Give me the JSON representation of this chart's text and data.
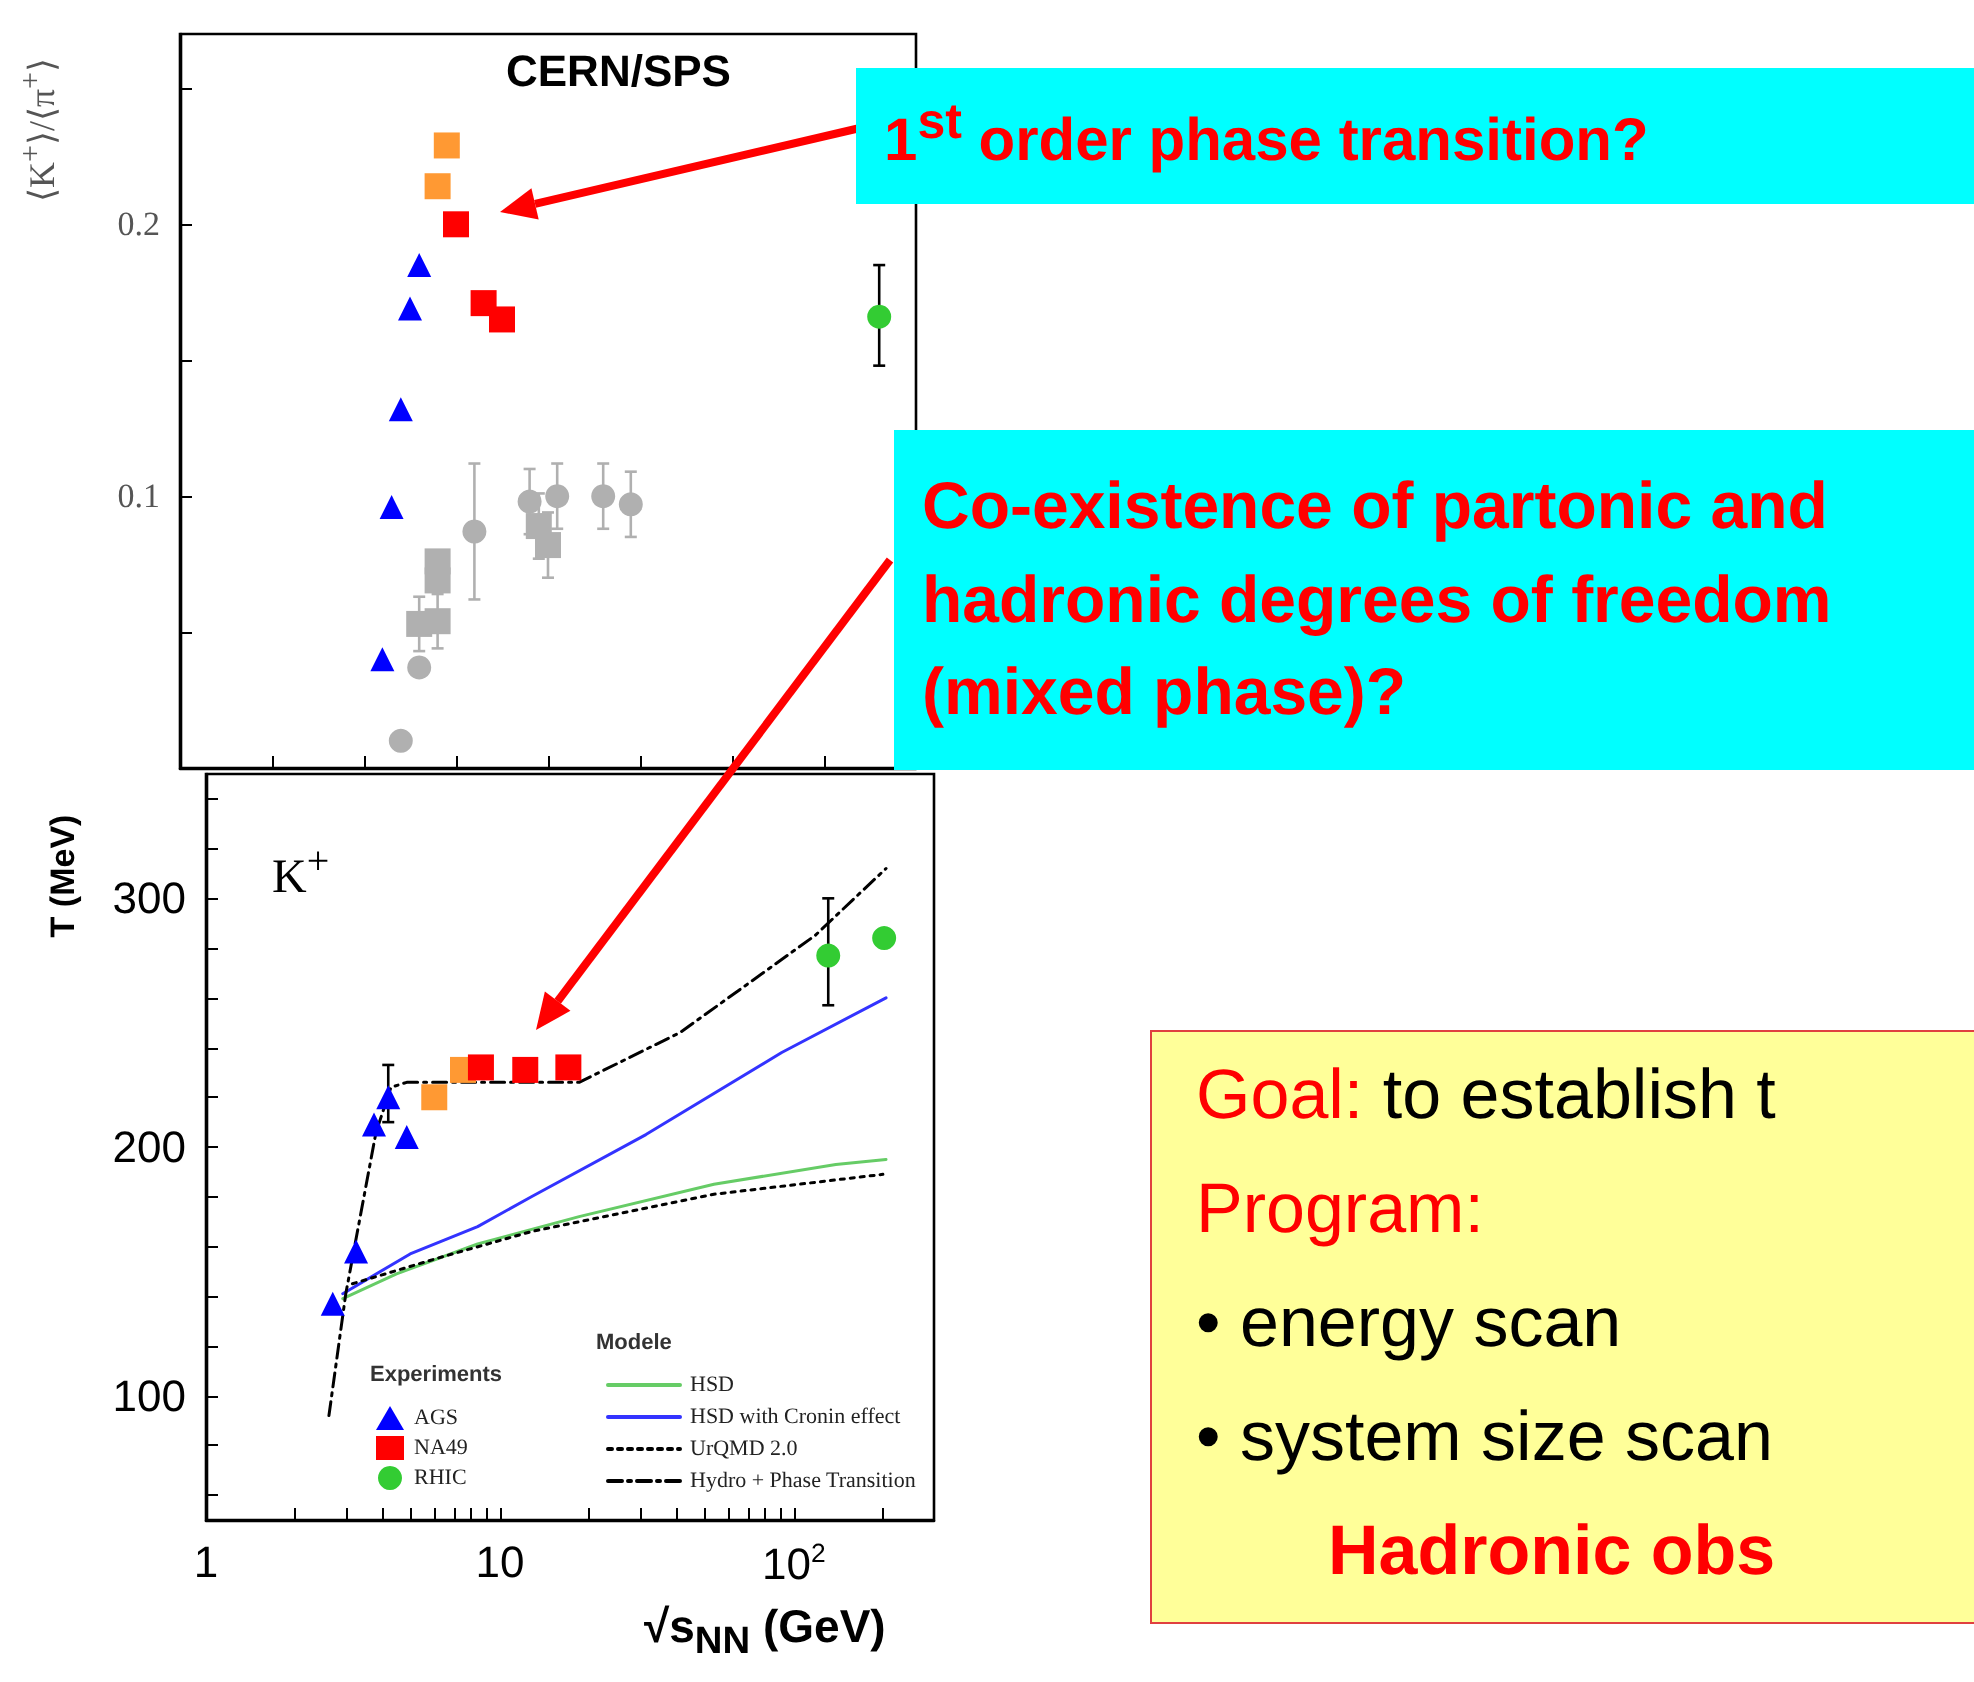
{
  "chart_data": [
    {
      "type": "scatter",
      "ylabel": "⟨K$^{+}$⟩/⟨π$^{+}$⟩",
      "categories": [
        null,
        null,
        null,
        null,
        null,
        null,
        null,
        null,
        null,
        null,
        null,
        null,
        null,
        null,
        null,
        null,
        null,
        null,
        null,
        null,
        null,
        null,
        null,
        null,
        null,
        null,
        null,
        null,
        null,
        null,
        null,
        null,
        null,
        null,
        null,
        null,
        null,
        null,
        null,
        null,
        null,
        null,
        null,
        null,
        null,
        null,
        null,
        null,
        null,
        null,
        null,
        null,
        null,
        null,
        null,
        null,
        null,
        null,
        null,
        null,
        null,
        null,
        null,
        null,
        null,
        null,
        null,
        null,
        null,
        null,
        null,
        null,
        null,
        null,
        null,
        null,
        null,
        null,
        null,
        null,
        null
      ],
      "ylim": [
        0,
        0.27
      ],
      "yticks": [
        {
          "value": 0.05,
          "label": null
        },
        0.1,
        {
          "value": 0.15,
          "label": null
        },
        0.2,
        {
          "value": 0.25,
          "label": null
        }
      ],
      "tick_labels": "y",
      "grid": false,
      "series": [
        {
          "color": "#b0b0b0",
          "marker": "circle",
          "values": [
            null,
            null,
            null,
            null,
            null,
            null,
            null,
            null,
            null,
            null,
            null,
            null,
            null,
            null,
            null,
            null,
            null,
            null,
            null,
            null,
            null,
            null,
            null,
            null,
            0.01,
            null,
            0.037,
            null,
            null,
            null,
            null,
            null,
            0.087,
            null,
            null,
            null,
            null,
            null,
            0.098,
            null,
            null,
            0.1,
            null,
            null,
            null,
            null,
            0.1,
            null,
            null,
            0.097,
            null,
            null,
            null,
            null,
            null,
            null,
            null,
            null,
            null,
            null,
            null,
            null,
            null,
            null,
            null,
            null,
            null,
            null,
            null,
            null,
            null,
            null,
            null,
            null,
            null,
            null,
            null,
            null,
            null,
            null,
            null
          ],
          "errors": [
            null,
            null,
            null,
            null,
            null,
            null,
            null,
            null,
            null,
            null,
            null,
            null,
            null,
            null,
            null,
            null,
            null,
            null,
            null,
            null,
            null,
            null,
            null,
            null,
            null,
            null,
            null,
            null,
            null,
            null,
            null,
            null,
            0.025,
            null,
            null,
            null,
            null,
            null,
            0.012,
            null,
            null,
            0.012,
            null,
            null,
            null,
            null,
            0.012,
            null,
            null,
            0.012,
            null,
            null,
            null,
            null,
            null,
            null,
            null,
            null,
            null,
            null,
            null,
            null,
            null,
            null,
            null,
            null,
            null,
            null,
            null,
            null,
            null,
            null,
            null,
            null,
            null,
            null,
            null,
            null,
            null,
            null,
            null
          ]
        },
        {
          "color": "#b0b0b0",
          "marker": "square",
          "values": [
            null,
            null,
            null,
            null,
            null,
            null,
            null,
            null,
            null,
            null,
            null,
            null,
            null,
            null,
            null,
            null,
            null,
            null,
            null,
            null,
            null,
            null,
            null,
            null,
            null,
            null,
            0.053,
            null,
            0.054,
            null,
            null,
            null,
            null,
            null,
            null,
            null,
            null,
            null,
            null,
            0.089,
            0.082,
            null,
            null,
            null,
            null,
            null,
            null,
            null,
            null,
            null,
            null,
            null,
            null,
            null,
            null,
            null,
            null,
            null,
            null,
            null,
            null,
            null,
            null,
            null,
            null,
            null,
            null,
            null,
            null,
            null,
            null,
            null,
            null,
            null,
            null,
            null,
            null,
            null,
            null,
            null,
            null
          ],
          "errors": [
            null,
            null,
            null,
            null,
            null,
            null,
            null,
            null,
            null,
            null,
            null,
            null,
            null,
            null,
            null,
            null,
            null,
            null,
            null,
            null,
            null,
            null,
            null,
            null,
            null,
            null,
            0.01,
            null,
            0.01,
            null,
            null,
            null,
            null,
            null,
            null,
            null,
            null,
            null,
            null,
            0.012,
            0.012,
            null,
            null,
            null,
            null,
            null,
            null,
            null,
            null,
            null,
            null,
            null,
            null,
            null,
            null,
            null,
            null,
            null,
            null,
            null,
            null,
            null,
            null,
            null,
            null,
            null,
            null,
            null,
            null,
            null,
            null,
            null,
            null,
            null,
            null,
            null,
            null,
            null,
            null,
            null,
            null
          ]
        },
        {
          "color": "#b0b0b0",
          "marker": "square",
          "values": [
            null,
            null,
            null,
            null,
            null,
            null,
            null,
            null,
            null,
            null,
            null,
            null,
            null,
            null,
            null,
            null,
            null,
            null,
            null,
            null,
            null,
            null,
            null,
            null,
            null,
            null,
            null,
            null,
            0.069,
            null,
            null,
            null,
            null,
            null,
            null,
            null,
            null,
            null,
            null,
            null,
            null,
            null,
            null,
            null,
            null,
            null,
            null,
            null,
            null,
            null,
            null,
            null,
            null,
            null,
            null,
            null,
            null,
            null,
            null,
            null,
            null,
            null,
            null,
            null,
            null,
            null,
            null,
            null,
            null,
            null,
            null,
            null,
            null,
            null,
            null,
            null,
            null,
            null,
            null,
            null,
            null
          ]
        },
        {
          "color": "#b0b0b0",
          "marker": "square",
          "values": [
            null,
            null,
            null,
            null,
            null,
            null,
            null,
            null,
            null,
            null,
            null,
            null,
            null,
            null,
            null,
            null,
            null,
            null,
            null,
            null,
            null,
            null,
            null,
            null,
            null,
            null,
            null,
            null,
            0.076,
            null,
            null,
            null,
            null,
            null,
            null,
            null,
            null,
            null,
            null,
            null,
            null,
            null,
            null,
            null,
            null,
            null,
            null,
            null,
            null,
            null,
            null,
            null,
            null,
            null,
            null,
            null,
            null,
            null,
            null,
            null,
            null,
            null,
            null,
            null,
            null,
            null,
            null,
            null,
            null,
            null,
            null,
            null,
            null,
            null,
            null,
            null,
            null,
            null,
            null,
            null,
            null
          ]
        },
        {
          "color": "#0000ff",
          "marker": "triangle",
          "values": [
            null,
            null,
            null,
            null,
            null,
            null,
            null,
            null,
            null,
            null,
            null,
            null,
            null,
            null,
            null,
            null,
            null,
            null,
            null,
            null,
            null,
            null,
            0.04,
            0.096,
            0.132,
            0.169,
            0.185,
            null,
            null,
            null,
            null,
            null,
            null,
            null,
            null,
            null,
            null,
            null,
            null,
            null,
            null,
            null,
            null,
            null,
            null,
            null,
            null,
            null,
            null,
            null,
            null,
            null,
            null,
            null,
            null,
            null,
            null,
            null,
            null,
            null,
            null,
            null,
            null,
            null,
            null,
            null,
            null,
            null,
            null,
            null,
            null,
            null,
            null,
            null,
            null,
            null,
            null,
            null,
            null,
            null,
            null
          ]
        },
        {
          "color": "#ff9933",
          "marker": "square",
          "values": [
            null,
            null,
            null,
            null,
            null,
            null,
            null,
            null,
            null,
            null,
            null,
            null,
            null,
            null,
            null,
            null,
            null,
            null,
            null,
            null,
            null,
            null,
            null,
            null,
            null,
            null,
            null,
            null,
            0.214,
            0.229,
            null,
            null,
            null,
            null,
            null,
            null,
            null,
            null,
            null,
            null,
            null,
            null,
            null,
            null,
            null,
            null,
            null,
            null,
            null,
            null,
            null,
            null,
            null,
            null,
            null,
            null,
            null,
            null,
            null,
            null,
            null,
            null,
            null,
            null,
            null,
            null,
            null,
            null,
            null,
            null,
            null,
            null,
            null,
            null,
            null,
            null,
            null,
            null,
            null,
            null,
            null
          ]
        },
        {
          "color": "#ff0000",
          "marker": "square",
          "values": [
            null,
            null,
            null,
            null,
            null,
            null,
            null,
            null,
            null,
            null,
            null,
            null,
            null,
            null,
            null,
            null,
            null,
            null,
            null,
            null,
            null,
            null,
            null,
            null,
            null,
            null,
            null,
            null,
            null,
            null,
            0.2,
            null,
            null,
            0.171,
            null,
            0.165,
            null,
            null,
            null,
            null,
            null,
            null,
            null,
            null,
            null,
            null,
            null,
            null,
            null,
            null,
            null,
            null,
            null,
            null,
            null,
            null,
            null,
            null,
            null,
            null,
            null,
            null,
            null,
            null,
            null,
            null,
            null,
            null,
            null,
            null,
            null,
            null,
            null,
            null,
            null,
            null,
            null,
            null,
            null,
            null,
            null
          ]
        },
        {
          "color": "#33cc33",
          "marker": "circle",
          "values": [
            null,
            null,
            null,
            null,
            null,
            null,
            null,
            null,
            null,
            null,
            null,
            null,
            null,
            null,
            null,
            null,
            null,
            null,
            null,
            null,
            null,
            null,
            null,
            null,
            null,
            null,
            null,
            null,
            null,
            null,
            null,
            null,
            null,
            null,
            null,
            null,
            null,
            null,
            null,
            null,
            null,
            null,
            null,
            null,
            null,
            null,
            null,
            null,
            null,
            null,
            null,
            null,
            null,
            null,
            null,
            null,
            null,
            null,
            null,
            null,
            null,
            null,
            null,
            null,
            null,
            null,
            null,
            null,
            null,
            null,
            null,
            null,
            null,
            null,
            null,
            null,
            0.166,
            null,
            null,
            null,
            null
          ],
          "errors": [
            null,
            null,
            null,
            null,
            null,
            null,
            null,
            null,
            null,
            null,
            null,
            null,
            null,
            null,
            null,
            null,
            null,
            null,
            null,
            null,
            null,
            null,
            null,
            null,
            null,
            null,
            null,
            null,
            null,
            null,
            null,
            null,
            null,
            null,
            null,
            null,
            null,
            null,
            null,
            null,
            null,
            null,
            null,
            null,
            null,
            null,
            null,
            null,
            null,
            null,
            null,
            null,
            null,
            null,
            null,
            null,
            null,
            null,
            null,
            null,
            null,
            null,
            null,
            null,
            null,
            null,
            null,
            null,
            null,
            null,
            null,
            null,
            null,
            null,
            null,
            null,
            [
              0.148,
              0.185
            ],
            null,
            null,
            null,
            null
          ]
        }
      ],
      "annotations": [
        "CERN/SPS",
        "1$^{st}$ order phase transition?"
      ]
    },
    {
      "type": "scatter",
      "xlabel": "√s$_{NN}$ (GeV)",
      "ylabel": "T (MeV)",
      "log": "x",
      "xlim": [
        1,
        300
      ],
      "xticks": [
        1,
        {
          "value": 2,
          "label": null
        },
        {
          "value": 3,
          "label": null
        },
        {
          "value": 4,
          "label": null
        },
        {
          "value": 5,
          "label": null
        },
        {
          "value": 6,
          "label": null
        },
        {
          "value": 7,
          "label": null
        },
        {
          "value": 8,
          "label": null
        },
        {
          "value": 9,
          "label": null
        },
        10,
        {
          "value": 20,
          "label": null
        },
        {
          "value": 30,
          "label": null
        },
        {
          "value": 40,
          "label": null
        },
        {
          "value": 50,
          "label": null
        },
        {
          "value": 60,
          "label": null
        },
        {
          "value": 70,
          "label": null
        },
        {
          "value": 80,
          "label": null
        },
        {
          "value": 90,
          "label": null
        },
        {
          "value": 100,
          "label": "10$^{2}$"
        },
        {
          "value": 200,
          "label": null
        }
      ],
      "ylim": [
        50,
        350
      ],
      "yticks": [
        {
          "value": 60,
          "label": null
        },
        {
          "value": 80,
          "label": null
        },
        100,
        {
          "value": 120,
          "label": null
        },
        {
          "value": 140,
          "label": null
        },
        {
          "value": 160,
          "label": null
        },
        {
          "value": 180,
          "label": null
        },
        200,
        {
          "value": 220,
          "label": null
        },
        {
          "value": 240,
          "label": null
        },
        {
          "value": 260,
          "label": null
        },
        {
          "value": 280,
          "label": null
        },
        300,
        {
          "value": 320,
          "label": null
        },
        {
          "value": 340,
          "label": null
        }
      ],
      "grid": false,
      "legend": "bottom right",
      "legend_title": [
        "Experiments",
        "Modele"
      ],
      "series": [
        {
          "name": "AGS",
          "color": "#0000ff",
          "marker": "triangle",
          "x": [
            2.7,
            3.24,
            3.73,
            4.17,
            4.82
          ],
          "values": [
            137,
            158,
            209,
            220,
            204
          ],
          "errors": [
            null,
            null,
            null,
            [
              210,
              233
            ],
            null
          ]
        },
        {
          "color": "#ff9933",
          "marker": "square",
          "x": [
            5.98,
            7.49
          ],
          "values": [
            220,
            231
          ]
        },
        {
          "name": "NA49",
          "color": "#ff0000",
          "marker": "square",
          "x": [
            8.62,
            12.2,
            17.1
          ],
          "values": [
            232,
            231,
            232
          ]
        },
        {
          "name": "RHIC",
          "color": "#33cc33",
          "marker": "circle",
          "x": [
            131,
            203
          ],
          "values": [
            277,
            284
          ],
          "errors": [
            [
              257,
              300
            ],
            null
          ]
        },
        {
          "name": "HSD",
          "type": "line",
          "color": "#66cc66",
          "line_style": "solid",
          "x": [
            2.92,
            4.45,
            8.4,
            18.6,
            53.5,
            139,
            206
          ],
          "values": [
            139,
            149,
            161,
            172,
            185,
            193,
            195
          ]
        },
        {
          "name": "HSD with Cronin effect",
          "type": "line",
          "color": "#3333ff",
          "line_style": "solid",
          "x": [
            2.92,
            4.95,
            8.4,
            12.8,
            31.4,
            91,
            206
          ],
          "values": [
            141,
            157,
            168,
            180,
            205,
            238,
            260
          ]
        },
        {
          "name": "UrQMD 2.0",
          "type": "line",
          "color": "#000000",
          "line_style": "dotted",
          "x": [
            3.15,
            6.44,
            12.8,
            53.5,
            201
          ],
          "values": [
            145,
            156,
            166,
            181,
            189
          ]
        },
        {
          "name": "Hydro + Phase Transition",
          "type": "line",
          "color": "#000000",
          "line_style": "dashed",
          "x": [
            2.62,
            2.99,
            3.79,
            4.26,
            4.82,
            18.6,
            41,
            118,
            206
          ],
          "values": [
            92,
            141,
            206,
            224,
            226,
            226,
            246,
            285,
            312
          ]
        }
      ],
      "annotations": [
        "K$^{+}$",
        "Co-existence of partonic and hadronic degrees of freedom (mixed phase)?"
      ]
    },
    {
      "type": "other",
      "annotations": [
        "Goal: to establish t",
        "Program:",
        "• energy scan",
        "• system size scan",
        "Hadronic obs"
      ]
    }
  ]
}
